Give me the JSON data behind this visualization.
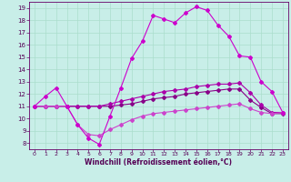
{
  "xlabel": "Windchill (Refroidissement éolien,°C)",
  "bg_color": "#c8eee8",
  "grid_color": "#aaddcc",
  "line_color": "#cc00cc",
  "xlim": [
    -0.5,
    23.5
  ],
  "ylim": [
    7.5,
    19.5
  ],
  "xticks": [
    0,
    1,
    2,
    3,
    4,
    5,
    6,
    7,
    8,
    9,
    10,
    11,
    12,
    13,
    14,
    15,
    16,
    17,
    18,
    19,
    20,
    21,
    22,
    23
  ],
  "yticks": [
    8,
    9,
    10,
    11,
    12,
    13,
    14,
    15,
    16,
    17,
    18,
    19
  ],
  "line1_x": [
    0,
    1,
    2,
    3,
    4,
    5,
    6,
    7,
    8,
    9,
    10,
    11,
    12,
    13,
    14,
    15,
    16,
    17,
    18,
    19,
    20,
    21,
    22,
    23
  ],
  "line1_y": [
    11,
    11.8,
    12.5,
    11,
    9.5,
    8.4,
    7.9,
    10.2,
    12.5,
    14.9,
    16.3,
    18.4,
    18.1,
    17.8,
    18.6,
    19.1,
    18.8,
    17.6,
    16.7,
    15.1,
    15.0,
    13.0,
    12.2,
    10.5
  ],
  "line2_x": [
    0,
    1,
    2,
    3,
    4,
    5,
    6,
    7,
    8,
    9,
    10,
    11,
    12,
    13,
    14,
    15,
    16,
    17,
    18,
    19,
    20,
    21,
    22,
    23
  ],
  "line2_y": [
    11,
    11,
    11,
    11,
    11,
    11,
    11,
    11.2,
    11.4,
    11.6,
    11.8,
    12.0,
    12.2,
    12.3,
    12.4,
    12.6,
    12.7,
    12.8,
    12.8,
    12.9,
    12.1,
    11.1,
    10.5,
    10.5
  ],
  "line3_x": [
    0,
    1,
    2,
    3,
    4,
    5,
    6,
    7,
    8,
    9,
    10,
    11,
    12,
    13,
    14,
    15,
    16,
    17,
    18,
    19,
    20,
    21,
    22,
    23
  ],
  "line3_y": [
    11,
    11,
    11,
    11,
    11,
    11,
    11,
    11.0,
    11.1,
    11.2,
    11.4,
    11.6,
    11.7,
    11.8,
    12.0,
    12.1,
    12.2,
    12.3,
    12.4,
    12.4,
    11.5,
    10.9,
    10.4,
    10.4
  ],
  "line4_x": [
    0,
    1,
    2,
    3,
    4,
    5,
    6,
    7,
    8,
    9,
    10,
    11,
    12,
    13,
    14,
    15,
    16,
    17,
    18,
    19,
    20,
    21,
    22,
    23
  ],
  "line4_y": [
    11,
    11,
    11,
    11,
    9.5,
    8.7,
    8.6,
    9.1,
    9.5,
    9.9,
    10.2,
    10.4,
    10.5,
    10.6,
    10.7,
    10.8,
    10.9,
    11.0,
    11.1,
    11.2,
    10.8,
    10.5,
    10.4,
    10.5
  ]
}
